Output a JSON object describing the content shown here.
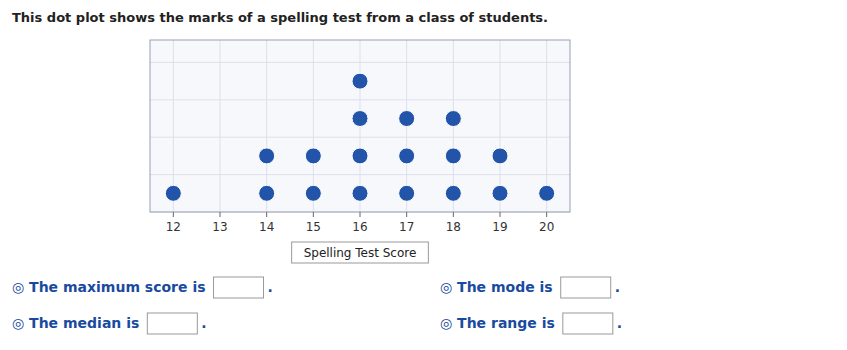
{
  "chart_data": {
    "type": "dot",
    "title": "This dot plot shows the marks of a spelling test from a class of students.",
    "x_label": "Spelling Test Score",
    "x": [
      12,
      13,
      14,
      15,
      16,
      17,
      18,
      19,
      20
    ],
    "values": [
      1,
      0,
      2,
      2,
      4,
      3,
      3,
      2,
      1
    ],
    "color": "#2255aa",
    "xlim": [
      11.5,
      20.5
    ],
    "xticks": [
      12,
      13,
      14,
      15,
      16,
      17,
      18,
      19,
      20
    ],
    "ylim": [
      0,
      4.6
    ],
    "yticks": [
      0,
      1,
      2,
      3,
      4
    ],
    "tick_labels": "x",
    "grid": true,
    "annotations": [
      [
        "◎ The maximum score is",
        "."
      ],
      [
        "◎ The mode is",
        "."
      ],
      [
        "◎ The median is",
        "."
      ],
      [
        "◎ The range is",
        "."
      ]
    ]
  }
}
